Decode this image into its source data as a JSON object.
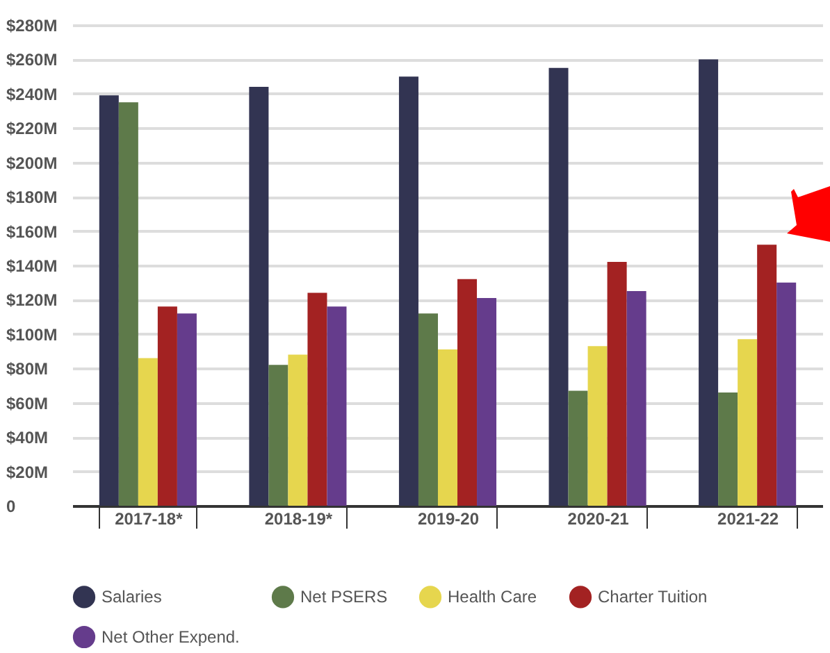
{
  "chart_data": {
    "type": "bar",
    "categories": [
      "2017-18*",
      "2018-19*",
      "2019-20",
      "2020-21",
      "2021-22"
    ],
    "series": [
      {
        "name": "Salaries",
        "color": "#323452",
        "values": [
          239,
          244,
          250,
          255,
          260
        ]
      },
      {
        "name": "Net PSERS",
        "color": "#5e7a4a",
        "values": [
          235,
          82,
          112,
          67,
          66
        ]
      },
      {
        "name": "Health Care",
        "color": "#e6d64e",
        "values": [
          86,
          88,
          91,
          93,
          97
        ]
      },
      {
        "name": "Charter Tuition",
        "color": "#a32222",
        "values": [
          116,
          124,
          132,
          142,
          152
        ]
      },
      {
        "name": "Net Other Expend.",
        "color": "#653c8c",
        "values": [
          112,
          116,
          121,
          125,
          130
        ]
      }
    ],
    "ylim": [
      0,
      280
    ],
    "yticks": [
      {
        "value": 0,
        "label": "0"
      },
      {
        "value": 20,
        "label": "$20M"
      },
      {
        "value": 40,
        "label": "$40M"
      },
      {
        "value": 60,
        "label": "$60M"
      },
      {
        "value": 80,
        "label": "$80M"
      },
      {
        "value": 100,
        "label": "$100M"
      },
      {
        "value": 120,
        "label": "$120M"
      },
      {
        "value": 140,
        "label": "$140M"
      },
      {
        "value": 160,
        "label": "$160M"
      },
      {
        "value": 180,
        "label": "$180M"
      },
      {
        "value": 200,
        "label": "$200M"
      },
      {
        "value": 220,
        "label": "$220M"
      },
      {
        "value": 240,
        "label": "$240M"
      },
      {
        "value": 260,
        "label": "$260M"
      },
      {
        "value": 280,
        "label": "$280M"
      }
    ],
    "grid": "y",
    "legend": "bottom"
  }
}
